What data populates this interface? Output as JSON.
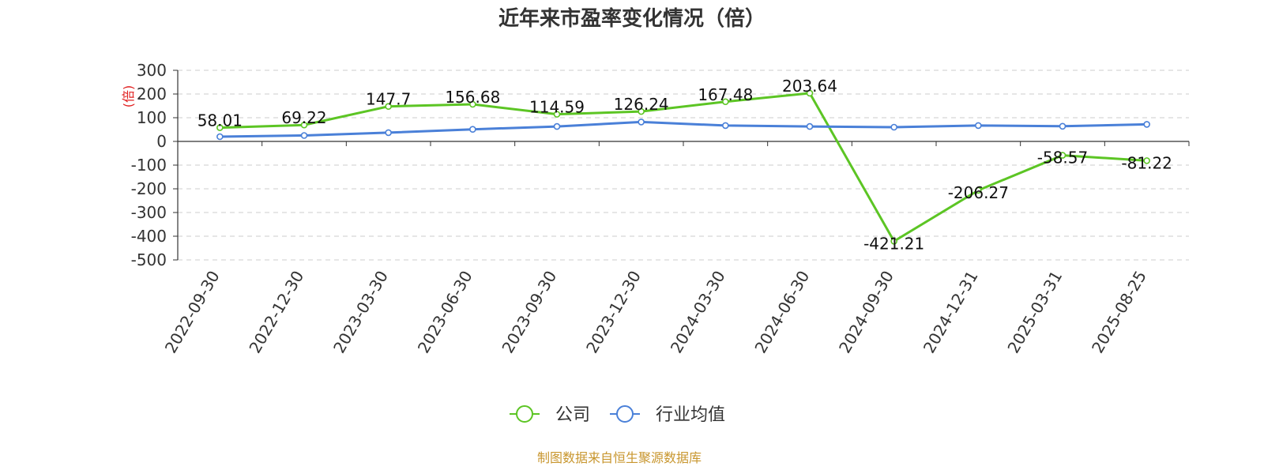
{
  "chart_data": {
    "type": "line",
    "title": "近年来市盈率变化情况（倍）",
    "ylabel": "(倍)",
    "ylim": [
      -500,
      300
    ],
    "yticks": [
      300,
      200,
      100,
      0,
      -100,
      -200,
      -300,
      -400,
      -500
    ],
    "grid": true,
    "legend_position": "bottom",
    "categories": [
      "2022-09-30",
      "2022-12-30",
      "2023-03-30",
      "2023-06-30",
      "2023-09-30",
      "2023-12-30",
      "2024-03-30",
      "2024-06-30",
      "2024-09-30",
      "2024-12-31",
      "2025-03-31",
      "2025-08-25"
    ],
    "series": [
      {
        "name": "公司",
        "values": [
          58.01,
          69.22,
          147.7,
          156.68,
          114.59,
          126.24,
          167.48,
          203.64,
          -421.21,
          -206.27,
          -58.57,
          -81.22
        ],
        "labels": [
          "58.01",
          "69.22",
          "147.7",
          "156.68",
          "114.59",
          "126.24",
          "167.48",
          "203.64",
          "-421.21",
          "-206.27",
          "-58.57",
          "-81.22"
        ],
        "color": "#5cc524"
      },
      {
        "name": "行业均值",
        "values": [
          20,
          25,
          37,
          51,
          63,
          82,
          67,
          63,
          60,
          67,
          64,
          72
        ],
        "color": "#4a80d8"
      }
    ],
    "source": "制图数据来自恒生聚源数据库",
    "colors": {
      "ylabel": "#e02020",
      "source": "#c8962e",
      "grid": "#cccccc",
      "axis": "#333333"
    }
  }
}
